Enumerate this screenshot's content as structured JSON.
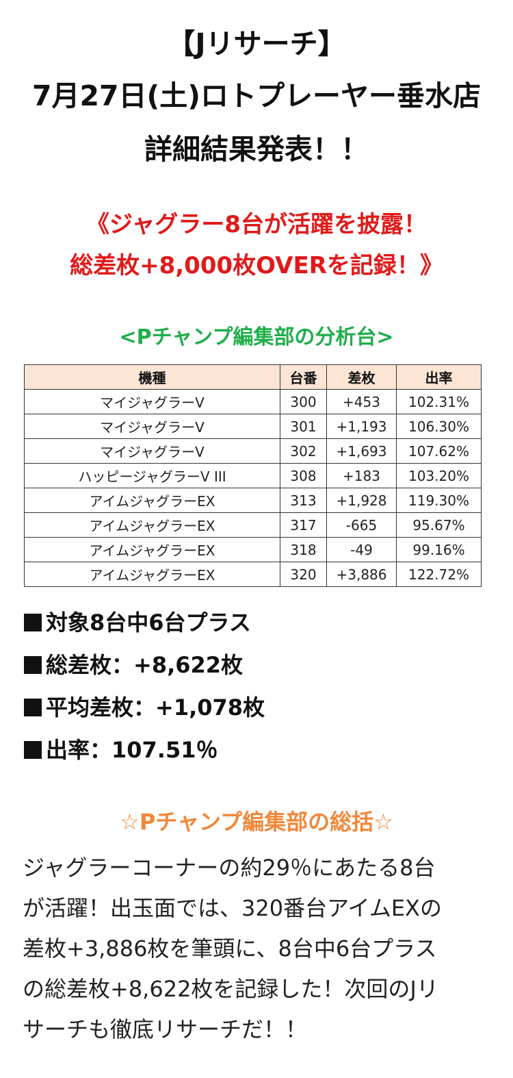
{
  "header": {
    "title_line1": "【Jリサーチ】",
    "title_line2": "7月27日(土)ロトプレーヤー垂水店",
    "title_line3": "詳細結果発表！！"
  },
  "headline": {
    "line1": "《ジャグラー8台が活躍を披露！",
    "line2": "総差枚+8,000枚OVERを記録！》"
  },
  "section_title": "<Pチャンプ編集部の分析台>",
  "table": {
    "columns": [
      "機種",
      "台番",
      "差枚",
      "出率"
    ],
    "rows": [
      [
        "マイジャグラーV",
        "300",
        "+453",
        "102.31%"
      ],
      [
        "マイジャグラーV",
        "301",
        "+1,193",
        "106.30%"
      ],
      [
        "マイジャグラーV",
        "302",
        "+1,693",
        "107.62%"
      ],
      [
        "ハッピージャグラーV III",
        "308",
        "+183",
        "103.20%"
      ],
      [
        "アイムジャグラーEX",
        "313",
        "+1,928",
        "119.30%"
      ],
      [
        "アイムジャグラーEX",
        "317",
        "-665",
        "95.67%"
      ],
      [
        "アイムジャグラーEX",
        "318",
        "-49",
        "99.16%"
      ],
      [
        "アイムジャグラーEX",
        "320",
        "+3,886",
        "122.72%"
      ]
    ]
  },
  "stats": [
    "対象8台中6台プラス",
    "総差枚：+8,622枚",
    "平均差枚：+1,078枚",
    "出率：107.51％"
  ],
  "summary_title": "☆Pチャンプ編集部の総括☆",
  "summary_lines": [
    "ジャグラーコーナーの約29％にあたる8台",
    "が活躍！出玉面では、320番台アイムEXの",
    "差枚+3,886枚を筆頭に、8台中6台プラス",
    "の総差枚+8,622枚を記録した！次回のJリ",
    "サーチも徹底リサーチだ！！"
  ],
  "colors": {
    "headline": "#e01a1a",
    "section_title": "#1fae4a",
    "summary_title": "#f0883a",
    "table_header_bg": "#fde5d6"
  }
}
